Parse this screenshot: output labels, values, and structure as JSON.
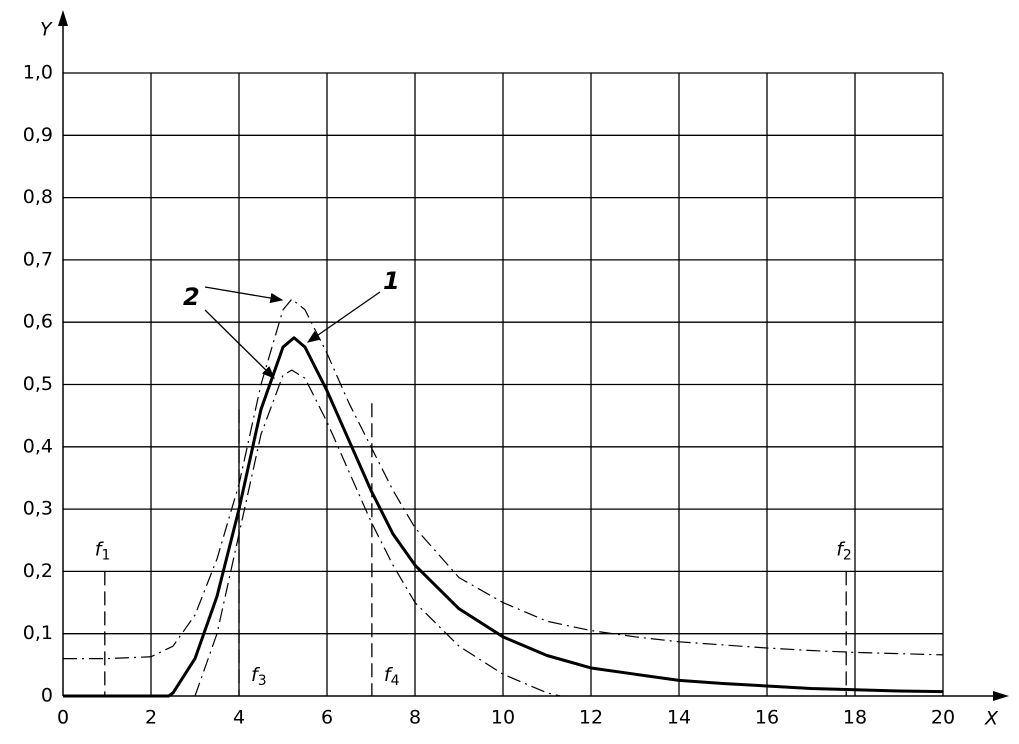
{
  "chart_data": {
    "type": "line",
    "x_label": "X",
    "y_label": "Y",
    "xlim": [
      0,
      20
    ],
    "ylim": [
      0,
      1.0
    ],
    "xticks": [
      0,
      2,
      4,
      6,
      8,
      10,
      12,
      14,
      16,
      18,
      20
    ],
    "yticks": [
      0,
      {
        "value": 0.1,
        "label": "0,1"
      },
      {
        "value": 0.2,
        "label": "0,2"
      },
      {
        "value": 0.3,
        "label": "0,3"
      },
      {
        "value": 0.4,
        "label": "0,4"
      },
      {
        "value": 0.5,
        "label": "0,5"
      },
      {
        "value": 0.6,
        "label": "0,6"
      },
      {
        "value": 0.7,
        "label": "0,7"
      },
      {
        "value": 0.8,
        "label": "0,8"
      },
      {
        "value": 0.9,
        "label": "0,9"
      },
      {
        "value": 1.0,
        "label": "1,0"
      }
    ],
    "grid": true,
    "series": [
      {
        "color": "#000000",
        "style": "solid",
        "width": 3,
        "x": [
          0,
          1,
          2,
          2.4,
          2.5,
          3,
          3.5,
          4,
          4.5,
          5,
          5.25,
          5.5,
          6,
          6.5,
          7,
          7.5,
          8,
          9,
          10,
          11,
          12,
          13,
          14,
          15,
          16,
          17,
          18,
          19,
          20
        ],
        "values": [
          0,
          0,
          0,
          0,
          0.005,
          0.06,
          0.16,
          0.3,
          0.46,
          0.56,
          0.575,
          0.56,
          0.49,
          0.41,
          0.33,
          0.26,
          0.21,
          0.14,
          0.095,
          0.065,
          0.045,
          0.035,
          0.025,
          0.02,
          0.016,
          0.012,
          0.01,
          0.008,
          0.007
        ]
      },
      {
        "color": "#000000",
        "style": "dashdot",
        "width": 1.2,
        "x": [
          0,
          1,
          2,
          2.5,
          3,
          3.5,
          4,
          4.5,
          5,
          5.2,
          5.5,
          6,
          6.5,
          7,
          7.5,
          8,
          9,
          10,
          11,
          12,
          13,
          14,
          15,
          16,
          17,
          18,
          19,
          20
        ],
        "values": [
          0.06,
          0.06,
          0.063,
          0.08,
          0.13,
          0.22,
          0.34,
          0.5,
          0.62,
          0.637,
          0.62,
          0.55,
          0.47,
          0.4,
          0.33,
          0.27,
          0.19,
          0.15,
          0.12,
          0.105,
          0.095,
          0.087,
          0.082,
          0.077,
          0.073,
          0.07,
          0.068,
          0.066
        ]
      },
      {
        "color": "#000000",
        "style": "dashdot",
        "width": 1.2,
        "x": [
          3,
          3.5,
          4,
          4.5,
          5,
          5.2,
          5.5,
          6,
          6.5,
          7,
          7.5,
          8,
          9,
          10,
          11,
          11.3
        ],
        "values": [
          0,
          0.1,
          0.26,
          0.42,
          0.515,
          0.523,
          0.51,
          0.44,
          0.36,
          0.28,
          0.21,
          0.15,
          0.08,
          0.035,
          0.005,
          0
        ]
      }
    ],
    "annotations": [
      {
        "text": "1"
      },
      {
        "text": "2"
      }
    ],
    "markers": [
      {
        "label": "f",
        "sub": "1",
        "x": 0.95,
        "y": 0.2,
        "position": "above"
      },
      {
        "label": "f",
        "sub": "2",
        "x": 17.8,
        "y": 0.2,
        "position": "above"
      },
      {
        "label": "f",
        "sub": "3",
        "x": 4.0,
        "y": 0.46,
        "position": "below"
      },
      {
        "label": "f",
        "sub": "4",
        "x": 7.02,
        "y": 0.47,
        "position": "below"
      }
    ]
  }
}
